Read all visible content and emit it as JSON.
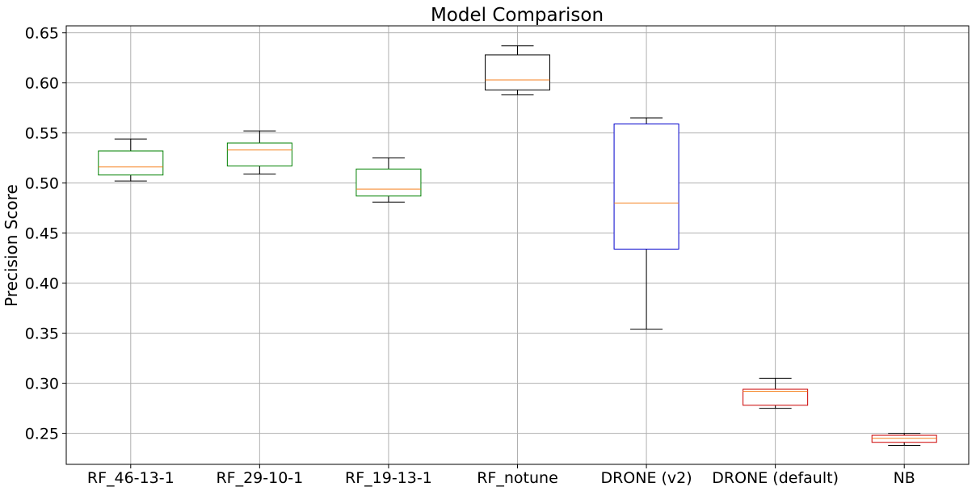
{
  "chart_data": {
    "type": "boxplot",
    "title": "Model Comparison",
    "xlabel": "",
    "ylabel": "Precision Score",
    "ylim": [
      0.219,
      0.657
    ],
    "yticks": [
      0.25,
      0.3,
      0.35,
      0.4,
      0.45,
      0.5,
      0.55,
      0.6,
      0.65
    ],
    "ytick_labels": [
      "0.25",
      "0.30",
      "0.35",
      "0.40",
      "0.45",
      "0.50",
      "0.55",
      "0.60",
      "0.65"
    ],
    "grid": true,
    "median_color": "#f58220",
    "whisker_color": "#000000",
    "categories": [
      "RF_46-13-1",
      "RF_29-10-1",
      "RF_19-13-1",
      "RF_notune",
      "DRONE (v2)",
      "DRONE (default)",
      "NB"
    ],
    "boxes": [
      {
        "label": "RF_46-13-1",
        "whislo": 0.502,
        "q1": 0.508,
        "med": 0.516,
        "q3": 0.532,
        "whishi": 0.544,
        "color": "#008000"
      },
      {
        "label": "RF_29-10-1",
        "whislo": 0.509,
        "q1": 0.517,
        "med": 0.533,
        "q3": 0.54,
        "whishi": 0.552,
        "color": "#008000"
      },
      {
        "label": "RF_19-13-1",
        "whislo": 0.481,
        "q1": 0.487,
        "med": 0.494,
        "q3": 0.514,
        "whishi": 0.525,
        "color": "#008000"
      },
      {
        "label": "RF_notune",
        "whislo": 0.588,
        "q1": 0.593,
        "med": 0.603,
        "q3": 0.628,
        "whishi": 0.637,
        "color": "#000000"
      },
      {
        "label": "DRONE (v2)",
        "whislo": 0.354,
        "q1": 0.434,
        "med": 0.48,
        "q3": 0.559,
        "whishi": 0.565,
        "color": "#0000cc"
      },
      {
        "label": "DRONE (default)",
        "whislo": 0.275,
        "q1": 0.278,
        "med": 0.292,
        "q3": 0.294,
        "whishi": 0.305,
        "color": "#cc0000"
      },
      {
        "label": "NB",
        "whislo": 0.238,
        "q1": 0.241,
        "med": 0.245,
        "q3": 0.248,
        "whishi": 0.25,
        "color": "#cc0000"
      }
    ]
  }
}
